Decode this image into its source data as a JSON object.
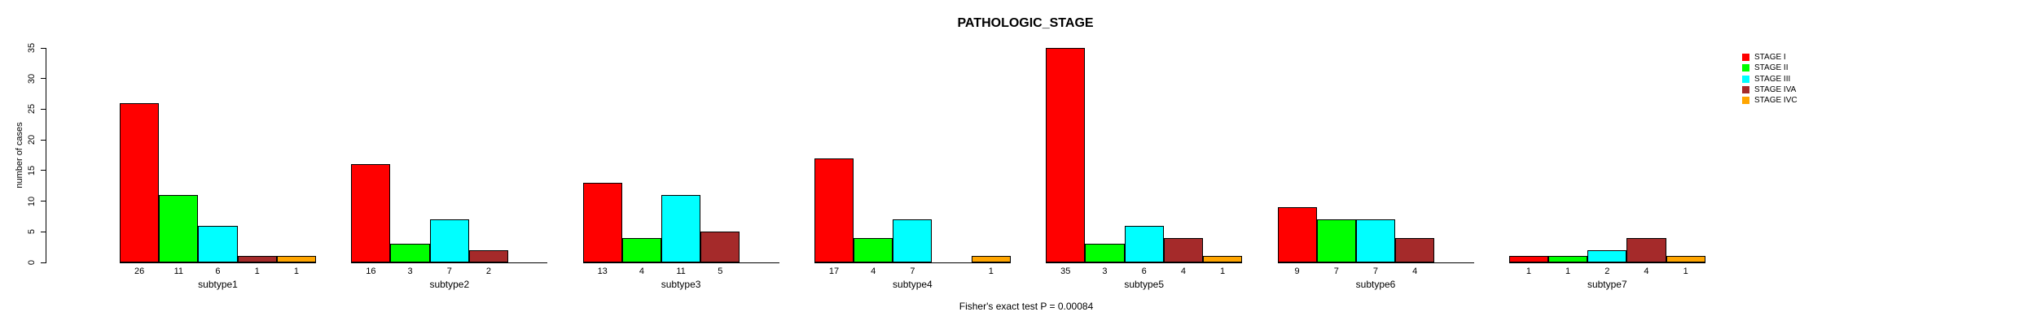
{
  "title": "PATHOLOGIC_STAGE",
  "footer_annotation": "Fisher's exact test P = 0.00084",
  "chart_data": {
    "type": "bar",
    "title": "PATHOLOGIC_STAGE",
    "xlabel": "",
    "ylabel": "number of cases",
    "ylim": [
      0,
      35
    ],
    "yticks": [
      0,
      5,
      10,
      15,
      20,
      25,
      30,
      35
    ],
    "grid": false,
    "legend_position": "top-right",
    "annotation": "Fisher's exact test P = 0.00084",
    "categories": [
      "subtype1",
      "subtype2",
      "subtype3",
      "subtype4",
      "subtype5",
      "subtype6",
      "subtype7"
    ],
    "series": [
      {
        "name": "STAGE I",
        "color": "#FF0000",
        "values": [
          26,
          16,
          13,
          17,
          35,
          9,
          1
        ]
      },
      {
        "name": "STAGE II",
        "color": "#00FF00",
        "values": [
          11,
          3,
          4,
          4,
          3,
          7,
          1
        ]
      },
      {
        "name": "STAGE III",
        "color": "#00FFFF",
        "values": [
          6,
          7,
          11,
          7,
          6,
          7,
          2
        ]
      },
      {
        "name": "STAGE IVA",
        "color": "#A52A2A",
        "values": [
          1,
          2,
          5,
          0,
          4,
          4,
          4
        ]
      },
      {
        "name": "STAGE IVC",
        "color": "#FFA500",
        "values": [
          1,
          0,
          0,
          1,
          1,
          0,
          1
        ]
      }
    ],
    "bar_value_labels_shown": true
  }
}
